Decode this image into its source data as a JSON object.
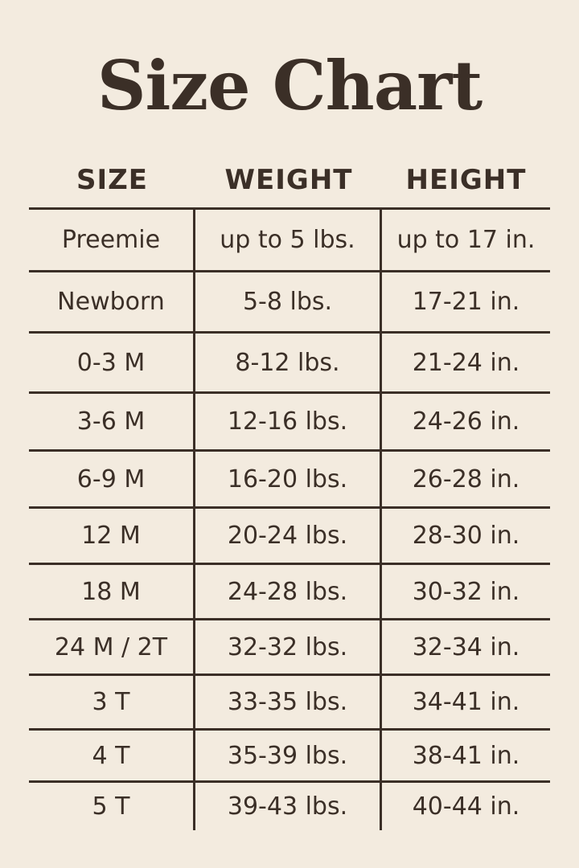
{
  "title": "Size Chart",
  "headers": [
    "SIZE",
    "WEIGHT",
    "HEIGHT"
  ],
  "rows": [
    [
      "Preemie",
      "up to 5 lbs.",
      "up to 17 in."
    ],
    [
      "Newborn",
      "5-8 lbs.",
      "17-21 in."
    ],
    [
      "0-3 M",
      "8-12 lbs.",
      "21-24 in."
    ],
    [
      "3-6 M",
      "12-16 lbs.",
      "24-26 in."
    ],
    [
      "6-9 M",
      "16-20 lbs.",
      "26-28 in."
    ],
    [
      "12 M",
      "20-24 lbs.",
      "28-30 in."
    ],
    [
      "18 M",
      "24-28 lbs.",
      "30-32 in."
    ],
    [
      "24 M / 2T",
      "32-32 lbs.",
      "32-34 in."
    ],
    [
      "3 T",
      "33-35 lbs.",
      "34-41 in."
    ],
    [
      "4 T",
      "35-39 lbs.",
      "38-41 in."
    ],
    [
      "5 T",
      "39-43 lbs.",
      "40-44 in."
    ]
  ],
  "colors": {
    "background": "#f3ebdf",
    "text": "#3b2f27"
  }
}
